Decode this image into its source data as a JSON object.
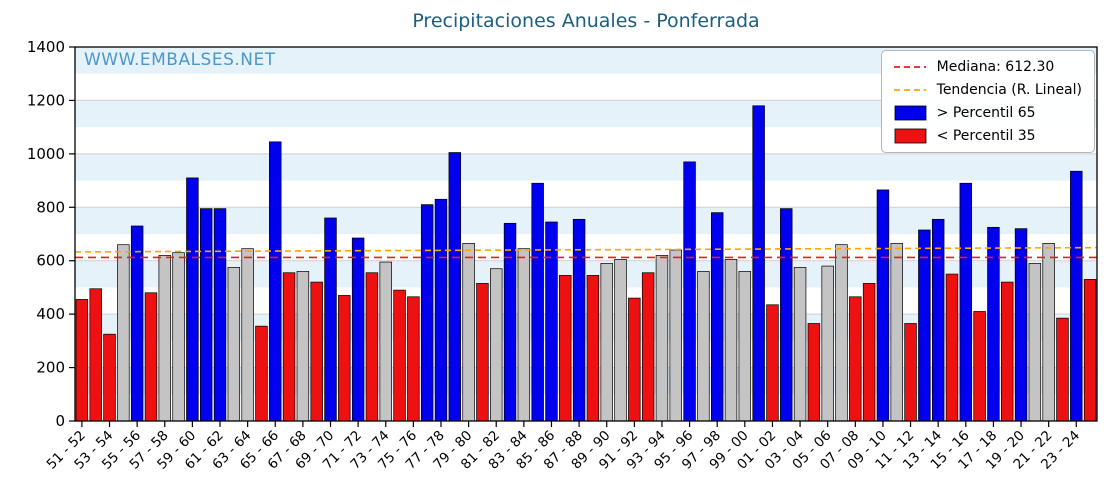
{
  "watermark": "WWW.EMBALSES.NET",
  "legend": {
    "median_label": "Mediana: 612.30",
    "trend_label": "Tendencia (R. Lineal)",
    "above_label": "> Percentil 65",
    "below_label": "< Percentil 35"
  },
  "colors": {
    "above": "#0000ee",
    "below": "#ee1111",
    "mid": "#c4c4c4",
    "median_line": "#dd2222",
    "trend_line": "#ffa500",
    "title": "#1b5e82",
    "watermark": "#4a97c9",
    "band": "#e6f2fa",
    "grid": "#cfcfcf",
    "bar_edge": "#000000"
  },
  "chart_data": {
    "type": "bar",
    "title": "Precipitaciones Anuales - Ponferrada",
    "xlabel": "",
    "ylabel": "",
    "ylim": [
      0,
      1400
    ],
    "yticks": [
      0,
      200,
      400,
      600,
      800,
      1000,
      1200,
      1400
    ],
    "grid": true,
    "legend_position": "upper right",
    "median": 612.3,
    "trend_start": 633,
    "trend_end": 649,
    "label_every": 2,
    "bars": [
      {
        "label": "51 - 52",
        "value": 455,
        "cat": "below"
      },
      {
        "label": "52 - 53",
        "value": 495,
        "cat": "below"
      },
      {
        "label": "53 - 54",
        "value": 325,
        "cat": "below"
      },
      {
        "label": "54 - 55",
        "value": 660,
        "cat": "mid"
      },
      {
        "label": "55 - 56",
        "value": 730,
        "cat": "above"
      },
      {
        "label": "56 - 57",
        "value": 480,
        "cat": "below"
      },
      {
        "label": "57 - 58",
        "value": 620,
        "cat": "mid"
      },
      {
        "label": "58 - 59",
        "value": 630,
        "cat": "mid"
      },
      {
        "label": "59 - 60",
        "value": 910,
        "cat": "above"
      },
      {
        "label": "60 - 61",
        "value": 795,
        "cat": "above"
      },
      {
        "label": "61 - 62",
        "value": 795,
        "cat": "above"
      },
      {
        "label": "62 - 63",
        "value": 575,
        "cat": "mid"
      },
      {
        "label": "63 - 64",
        "value": 645,
        "cat": "mid"
      },
      {
        "label": "64 - 65",
        "value": 355,
        "cat": "below"
      },
      {
        "label": "65 - 66",
        "value": 1045,
        "cat": "above"
      },
      {
        "label": "66 - 67",
        "value": 555,
        "cat": "below"
      },
      {
        "label": "67 - 68",
        "value": 560,
        "cat": "mid"
      },
      {
        "label": "68 - 69",
        "value": 520,
        "cat": "below"
      },
      {
        "label": "69 - 70",
        "value": 760,
        "cat": "above"
      },
      {
        "label": "70 - 71",
        "value": 470,
        "cat": "below"
      },
      {
        "label": "71 - 72",
        "value": 685,
        "cat": "above"
      },
      {
        "label": "72 - 73",
        "value": 555,
        "cat": "below"
      },
      {
        "label": "73 - 74",
        "value": 595,
        "cat": "mid"
      },
      {
        "label": "74 - 75",
        "value": 490,
        "cat": "below"
      },
      {
        "label": "75 - 76",
        "value": 465,
        "cat": "below"
      },
      {
        "label": "76 - 77",
        "value": 810,
        "cat": "above"
      },
      {
        "label": "77 - 78",
        "value": 830,
        "cat": "above"
      },
      {
        "label": "78 - 79",
        "value": 1005,
        "cat": "above"
      },
      {
        "label": "79 - 80",
        "value": 665,
        "cat": "mid"
      },
      {
        "label": "80 - 81",
        "value": 515,
        "cat": "below"
      },
      {
        "label": "81 - 82",
        "value": 570,
        "cat": "mid"
      },
      {
        "label": "82 - 83",
        "value": 740,
        "cat": "above"
      },
      {
        "label": "83 - 84",
        "value": 645,
        "cat": "mid"
      },
      {
        "label": "84 - 85",
        "value": 890,
        "cat": "above"
      },
      {
        "label": "85 - 86",
        "value": 745,
        "cat": "above"
      },
      {
        "label": "86 - 87",
        "value": 545,
        "cat": "below"
      },
      {
        "label": "87 - 88",
        "value": 755,
        "cat": "above"
      },
      {
        "label": "88 - 89",
        "value": 545,
        "cat": "below"
      },
      {
        "label": "89 - 90",
        "value": 590,
        "cat": "mid"
      },
      {
        "label": "90 - 91",
        "value": 605,
        "cat": "mid"
      },
      {
        "label": "91 - 92",
        "value": 460,
        "cat": "below"
      },
      {
        "label": "92 - 93",
        "value": 555,
        "cat": "below"
      },
      {
        "label": "93 - 94",
        "value": 620,
        "cat": "mid"
      },
      {
        "label": "94 - 95",
        "value": 640,
        "cat": "mid"
      },
      {
        "label": "95 - 96",
        "value": 970,
        "cat": "above"
      },
      {
        "label": "96 - 97",
        "value": 560,
        "cat": "mid"
      },
      {
        "label": "97 - 98",
        "value": 780,
        "cat": "above"
      },
      {
        "label": "98 - 99",
        "value": 605,
        "cat": "mid"
      },
      {
        "label": "99 - 00",
        "value": 560,
        "cat": "mid"
      },
      {
        "label": "00 - 01",
        "value": 1180,
        "cat": "above"
      },
      {
        "label": "01 - 02",
        "value": 435,
        "cat": "below"
      },
      {
        "label": "02 - 03",
        "value": 795,
        "cat": "above"
      },
      {
        "label": "03 - 04",
        "value": 575,
        "cat": "mid"
      },
      {
        "label": "04 - 05",
        "value": 365,
        "cat": "below"
      },
      {
        "label": "05 - 06",
        "value": 580,
        "cat": "mid"
      },
      {
        "label": "06 - 07",
        "value": 660,
        "cat": "mid"
      },
      {
        "label": "07 - 08",
        "value": 465,
        "cat": "below"
      },
      {
        "label": "08 - 09",
        "value": 515,
        "cat": "below"
      },
      {
        "label": "09 - 10",
        "value": 865,
        "cat": "above"
      },
      {
        "label": "10 - 11",
        "value": 665,
        "cat": "mid"
      },
      {
        "label": "11 - 12",
        "value": 365,
        "cat": "below"
      },
      {
        "label": "12 - 13",
        "value": 715,
        "cat": "above"
      },
      {
        "label": "13 - 14",
        "value": 755,
        "cat": "above"
      },
      {
        "label": "14 - 15",
        "value": 550,
        "cat": "below"
      },
      {
        "label": "15 - 16",
        "value": 890,
        "cat": "above"
      },
      {
        "label": "16 - 17",
        "value": 410,
        "cat": "below"
      },
      {
        "label": "17 - 18",
        "value": 725,
        "cat": "above"
      },
      {
        "label": "18 - 19",
        "value": 520,
        "cat": "below"
      },
      {
        "label": "19 - 20",
        "value": 720,
        "cat": "above"
      },
      {
        "label": "20 - 21",
        "value": 590,
        "cat": "mid"
      },
      {
        "label": "21 - 22",
        "value": 665,
        "cat": "mid"
      },
      {
        "label": "22 - 23",
        "value": 385,
        "cat": "below"
      },
      {
        "label": "23 - 24",
        "value": 935,
        "cat": "above"
      },
      {
        "label": "24 - 25",
        "value": 530,
        "cat": "below"
      }
    ]
  }
}
